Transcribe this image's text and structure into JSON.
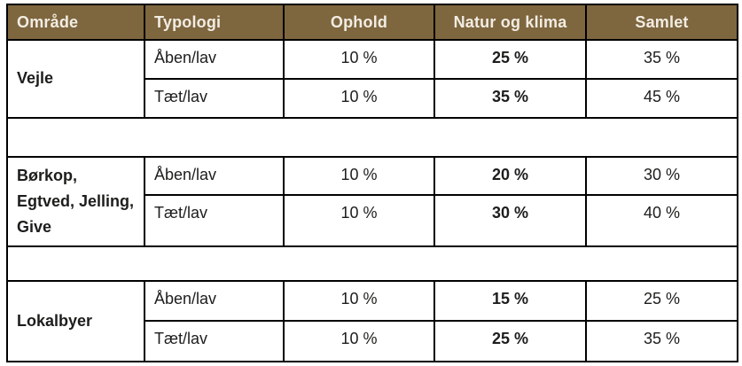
{
  "table": {
    "headers": [
      "Område",
      "Typologi",
      "Ophold",
      "Natur og klima",
      "Samlet"
    ],
    "sections": [
      {
        "area": "Vejle",
        "rows": [
          {
            "typology": "Åben/lav",
            "ophold": "10 %",
            "natur_og_klima": "25 %",
            "samlet": "35 %"
          },
          {
            "typology": "Tæt/lav",
            "ophold": "10 %",
            "natur_og_klima": "35 %",
            "samlet": "45 %"
          }
        ]
      },
      {
        "area": "Børkop, Egtved, Jelling, Give",
        "rows": [
          {
            "typology": "Åben/lav",
            "ophold": "10 %",
            "natur_og_klima": "20 %",
            "samlet": "30 %"
          },
          {
            "typology": "Tæt/lav",
            "ophold": "10 %",
            "natur_og_klima": "30 %",
            "samlet": "40 %"
          }
        ]
      },
      {
        "area": "Lokalbyer",
        "rows": [
          {
            "typology": "Åben/lav",
            "ophold": "10 %",
            "natur_og_klima": "15 %",
            "samlet": "25 %"
          },
          {
            "typology": "Tæt/lav",
            "ophold": "10 %",
            "natur_og_klima": "25 %",
            "samlet": "35 %"
          }
        ]
      }
    ]
  },
  "colors": {
    "header-bg": "#7E663F",
    "header-text": "#F2EDE3",
    "border": "#000000",
    "text": "#1D1D1B",
    "row-bg": "#FFFFFF"
  }
}
